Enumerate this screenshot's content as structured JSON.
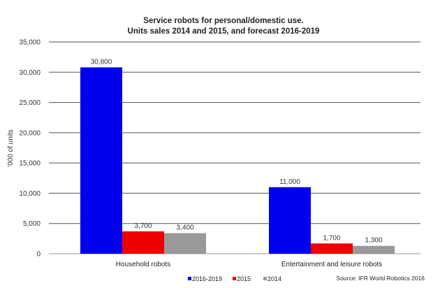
{
  "chart_data": {
    "type": "bar",
    "title": "Service robots for personal/domestic use.",
    "subtitle": "Units sales 2014 and 2015, and forecast 2016-2019",
    "xlabel": "",
    "ylabel": "'000 of units",
    "ylim": [
      0,
      35000
    ],
    "yticks": [
      "0",
      "5,000",
      "10,000",
      "15,000",
      "20,000",
      "25,000",
      "30,000",
      "35,000"
    ],
    "ytick_values": [
      0,
      5000,
      10000,
      15000,
      20000,
      25000,
      30000,
      35000
    ],
    "grid": true,
    "categories": [
      "Household robots",
      "Entertainment and leisure robots"
    ],
    "series": [
      {
        "name": "2016-2019",
        "color": "#0000ee",
        "values": [
          30800,
          11000
        ],
        "labels": [
          "30,800",
          "11,000"
        ]
      },
      {
        "name": "2015",
        "color": "#ee0000",
        "values": [
          3700,
          1700
        ],
        "labels": [
          "3,700",
          "1,700"
        ]
      },
      {
        "name": "2014",
        "color": "#999999",
        "values": [
          3400,
          1300
        ],
        "labels": [
          "3,400",
          "1,300"
        ]
      }
    ],
    "legend_position": "bottom-center",
    "source": "Source: IFR World Robotics 2016"
  }
}
